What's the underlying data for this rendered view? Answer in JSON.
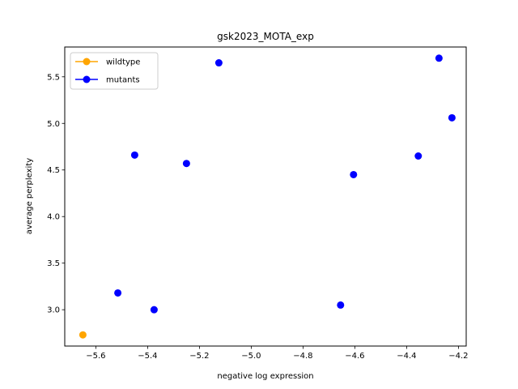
{
  "chart_data": {
    "type": "scatter",
    "title": "gsk2023_MOTA_exp",
    "xlabel": "negative log expression",
    "ylabel": "average perplexity",
    "xlim": [
      -5.72,
      -4.17
    ],
    "ylim": [
      2.61,
      5.82
    ],
    "xticks": [
      -5.6,
      -5.4,
      -5.2,
      -5.0,
      -4.8,
      -4.6,
      -4.4,
      -4.2
    ],
    "xtick_labels": [
      "−5.6",
      "−5.4",
      "−5.2",
      "−5.0",
      "−4.8",
      "−4.6",
      "−4.4",
      "−4.2"
    ],
    "yticks": [
      3.0,
      3.5,
      4.0,
      4.5,
      5.0,
      5.5
    ],
    "ytick_labels": [
      "3.0",
      "3.5",
      "4.0",
      "4.5",
      "5.0",
      "5.5"
    ],
    "grid": false,
    "legend_position": "top-left",
    "series": [
      {
        "name": "wildtype",
        "color": "#ffa500",
        "points": [
          {
            "x": -5.65,
            "y": 2.73
          }
        ]
      },
      {
        "name": "mutants",
        "color": "#0000ff",
        "points": [
          {
            "x": -5.515,
            "y": 3.18
          },
          {
            "x": -5.45,
            "y": 4.66
          },
          {
            "x": -5.375,
            "y": 3.0
          },
          {
            "x": -5.25,
            "y": 4.57
          },
          {
            "x": -5.125,
            "y": 5.65
          },
          {
            "x": -4.655,
            "y": 3.05
          },
          {
            "x": -4.605,
            "y": 4.45
          },
          {
            "x": -4.355,
            "y": 4.65
          },
          {
            "x": -4.275,
            "y": 5.7
          },
          {
            "x": -4.225,
            "y": 5.06
          }
        ]
      }
    ]
  }
}
